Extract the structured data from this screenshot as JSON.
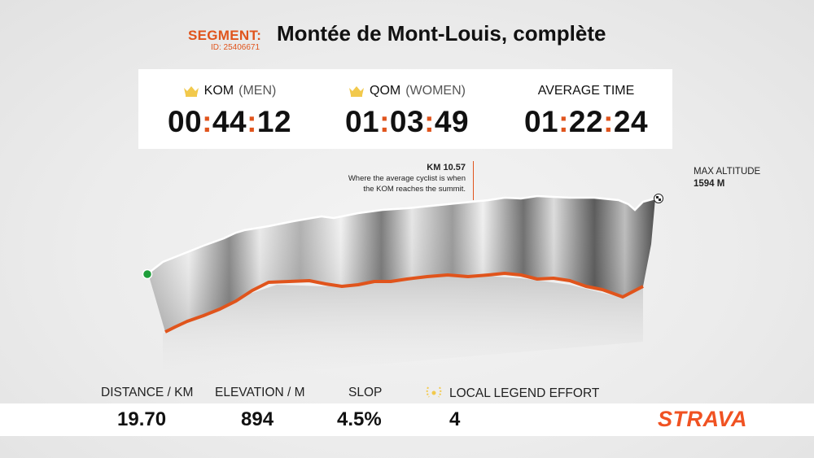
{
  "segment": {
    "label": "SEGMENT:",
    "id_text": "ID: 25406671",
    "title": "Montée de Mont-Louis, complète"
  },
  "stats": {
    "kom": {
      "label": "KOM",
      "sub": "(MEN)",
      "h": "00",
      "m": "44",
      "s": "12"
    },
    "qom": {
      "label": "QOM",
      "sub": "(WOMEN)",
      "h": "01",
      "m": "03",
      "s": "49"
    },
    "avg": {
      "label": "AVERAGE TIME",
      "h": "01",
      "m": "22",
      "s": "24"
    }
  },
  "annotation": {
    "km": "KM 10.57",
    "line1": "Where the average cyclist is when",
    "line2": "the KOM reaches the summit."
  },
  "max_altitude": {
    "label": "MAX ALTITUDE",
    "value": "1594 M"
  },
  "metrics": {
    "distance": {
      "label": "DISTANCE / KM",
      "value": "19.70"
    },
    "elevation": {
      "label": "ELEVATION / M",
      "value": "894"
    },
    "slope": {
      "label": "SLOP",
      "value": "4.5%"
    },
    "legend": {
      "label": "LOCAL LEGEND EFFORT",
      "value": "4"
    }
  },
  "brand": {
    "name": "STRAVA"
  },
  "colors": {
    "accent": "#e0541c",
    "brand": "#f05222",
    "crown": "#f2c94c",
    "start": "#1e9e3a"
  }
}
